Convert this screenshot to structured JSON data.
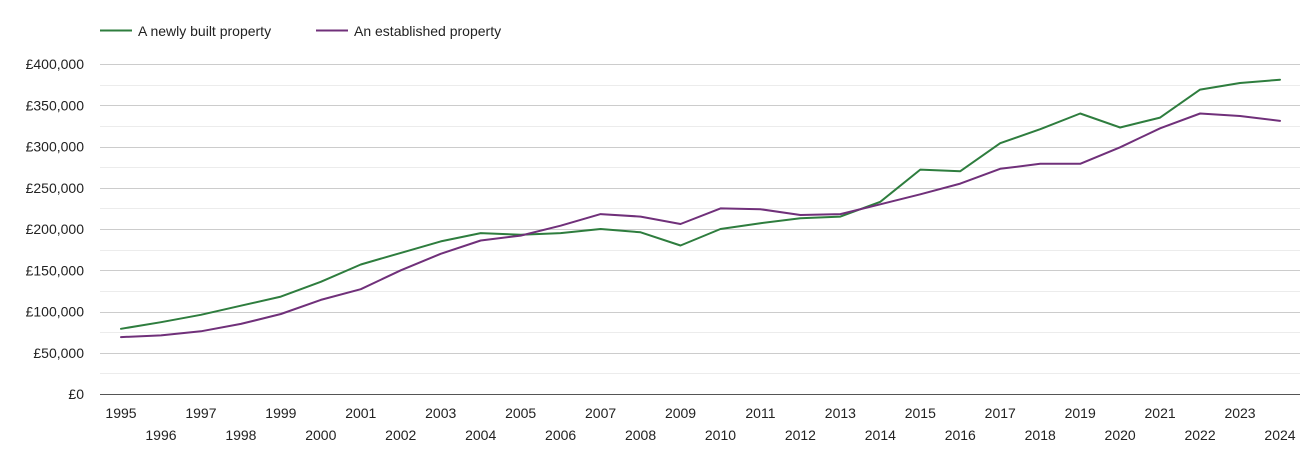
{
  "chart_data": {
    "type": "line",
    "title": "",
    "xlabel": "",
    "ylabel": "",
    "x": [
      1995,
      1996,
      1997,
      1998,
      1999,
      2000,
      2001,
      2002,
      2003,
      2004,
      2005,
      2006,
      2007,
      2008,
      2009,
      2010,
      2011,
      2012,
      2013,
      2014,
      2015,
      2016,
      2017,
      2018,
      2019,
      2020,
      2021,
      2022,
      2023,
      2024
    ],
    "x_tick_labels": [
      "1995",
      "1996",
      "1997",
      "1998",
      "1999",
      "2000",
      "2001",
      "2002",
      "2003",
      "2004",
      "2005",
      "2006",
      "2007",
      "2008",
      "2009",
      "2010",
      "2011",
      "2012",
      "2013",
      "2014",
      "2015",
      "2016",
      "2017",
      "2018",
      "2019",
      "2020",
      "2021",
      "2022",
      "2023",
      "2024"
    ],
    "ylim": [
      0,
      400000
    ],
    "y_ticks": [
      0,
      50000,
      100000,
      150000,
      200000,
      250000,
      300000,
      350000,
      400000
    ],
    "y_tick_labels": [
      "£0",
      "£50,000",
      "£100,000",
      "£150,000",
      "£200,000",
      "£250,000",
      "£300,000",
      "£350,000",
      "£400,000"
    ],
    "grid": true,
    "legend_position": "top-left",
    "series": [
      {
        "name": "A newly built property",
        "color": "#2e7d3e",
        "values": [
          79000,
          87000,
          96000,
          107000,
          118000,
          136000,
          157000,
          171000,
          185000,
          195000,
          193000,
          195000,
          200000,
          196000,
          180000,
          200000,
          207000,
          213000,
          215000,
          233000,
          272000,
          270000,
          304000,
          321000,
          340000,
          323000,
          335000,
          369000,
          377000,
          381000
        ]
      },
      {
        "name": "An established property",
        "color": "#70307a",
        "values": [
          69000,
          71000,
          76000,
          85000,
          97000,
          114000,
          127000,
          150000,
          170000,
          186000,
          192000,
          204000,
          218000,
          215000,
          206000,
          225000,
          224000,
          217000,
          218000,
          230000,
          242000,
          255000,
          273000,
          279000,
          279000,
          299000,
          322000,
          340000,
          337000,
          331000
        ]
      }
    ]
  }
}
